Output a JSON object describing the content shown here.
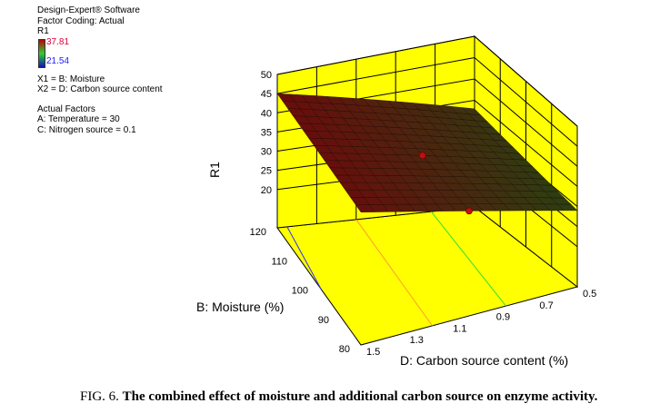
{
  "info": {
    "software": "Design-Expert® Software",
    "coding": "Factor Coding: Actual",
    "response": "R1",
    "legend_high": "37.81",
    "legend_low": "21.54",
    "x1": "X1 = B: Moisture",
    "x2": "X2 = D: Carbon source content",
    "actual_factors": "Actual Factors",
    "factor_a": "A: Temperature = 30",
    "factor_c": "C: Nitrogen source = 0.1"
  },
  "caption": {
    "label": "FIG. 6.",
    "text": "The combined effect of moisture and additional carbon source on enzyme activity."
  },
  "colors": {
    "wall": "#ffff00",
    "surface_high": "#6a0c0c",
    "surface_low": "#2a4012",
    "contour_blue": "#3030ff",
    "contour_orange": "#ff9a30",
    "contour_green": "#30e030"
  },
  "chart_data": {
    "type": "surface",
    "title": "",
    "zlabel": "R1",
    "xlabel": "B: Moisture (%)",
    "ylabel": "D: Carbon source content (%)",
    "moisture_ticks": [
      "80",
      "90",
      "100",
      "110",
      "120"
    ],
    "carbon_ticks": [
      "1.5",
      "1.3",
      "1.1",
      "0.9",
      "0.7",
      "0.5"
    ],
    "z_ticks": [
      "20",
      "25",
      "30",
      "35",
      "40",
      "45",
      "50"
    ],
    "xlim": [
      80,
      120
    ],
    "ylim": [
      0.5,
      1.5
    ],
    "zlim": [
      10,
      50
    ],
    "surface_corners": [
      {
        "moisture": 120,
        "carbon": 1.5,
        "r1": 45
      },
      {
        "moisture": 120,
        "carbon": 0.5,
        "r1": 33
      },
      {
        "moisture": 80,
        "carbon": 0.5,
        "r1": 29
      },
      {
        "moisture": 80,
        "carbon": 1.5,
        "r1": 44
      }
    ],
    "design_points": [
      {
        "moisture": 100,
        "carbon": 1.0,
        "r1": 38
      },
      {
        "moisture": 80,
        "carbon": 1.0,
        "r1": 36
      }
    ],
    "floor_contours": [
      {
        "color": "blue",
        "points": [
          [
            120,
            1.45
          ],
          [
            99,
            1.5
          ]
        ]
      },
      {
        "color": "orange",
        "points": [
          [
            120,
            1.1
          ],
          [
            80,
            1.17
          ]
        ]
      },
      {
        "color": "green",
        "points": [
          [
            120,
            0.72
          ],
          [
            80,
            0.83
          ]
        ]
      }
    ],
    "grid": true
  }
}
